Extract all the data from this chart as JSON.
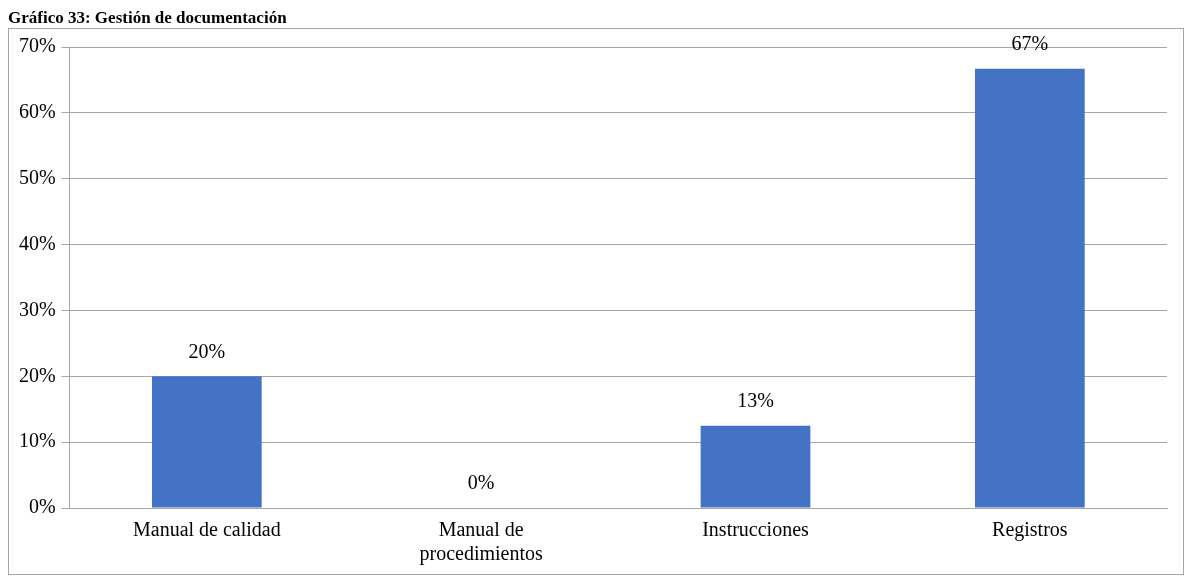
{
  "chart_data": {
    "type": "bar",
    "title": "Gráfico 33: Gestión de documentación",
    "categories": [
      "Manual de calidad",
      "Manual de procedimientos",
      "Instrucciones",
      "Registros"
    ],
    "values": [
      20,
      0,
      12.5,
      66.7
    ],
    "value_labels": [
      "20%",
      "0%",
      "13%",
      "67%"
    ],
    "color": "#4472c4",
    "ylim": [
      0,
      70
    ],
    "yticks": [
      {
        "value": 0,
        "label": "0%"
      },
      {
        "value": 10,
        "label": "10%"
      },
      {
        "value": 20,
        "label": "20%"
      },
      {
        "value": 30,
        "label": "30%"
      },
      {
        "value": 40,
        "label": "40%"
      },
      {
        "value": 50,
        "label": "50%"
      },
      {
        "value": 60,
        "label": "60%"
      },
      {
        "value": 70,
        "label": "70%"
      }
    ],
    "grid": "y",
    "legend": false
  }
}
